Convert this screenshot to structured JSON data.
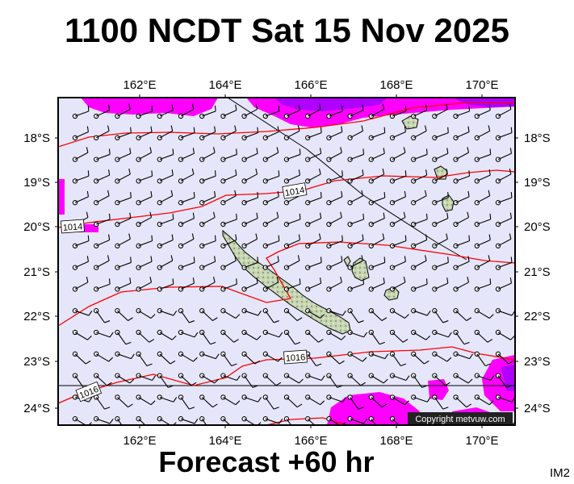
{
  "title": "1100 NCDT Sat 15 Nov 2025",
  "footer": "Forecast +60 hr",
  "tag": "IM2",
  "copyright": "Copyright metvuw.com",
  "lon_labels": [
    "162°E",
    "164°E",
    "166°E",
    "168°E",
    "170°E"
  ],
  "lat_labels": [
    "18°S",
    "19°S",
    "20°S",
    "21°S",
    "22°S",
    "23°S",
    "24°S"
  ],
  "isobar_labels": [
    "1014",
    "1014",
    "1016",
    "1016"
  ],
  "colors": {
    "background": "#e6e6fa",
    "rain_light": "#ff00ff",
    "rain_heavy": "#9900ff",
    "isobar": "#ff0000",
    "land": "#c8d6b4",
    "land_outline": "#000000"
  }
}
